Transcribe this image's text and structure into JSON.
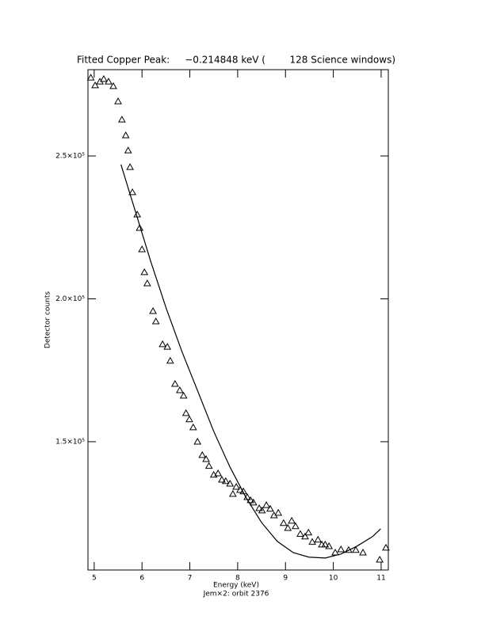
{
  "chart_data": {
    "type": "scatter",
    "title": "Fitted Copper Peak:     −0.214848 keV (        128 Science windows)",
    "x_label": "Energy (keV)",
    "subtitle": "Jem×2: orbit 2376",
    "y_label": "Detector counts",
    "xlim": [
      4.87,
      11.15
    ],
    "ylim": [
      105100,
      280200
    ],
    "xticks": [
      5,
      6,
      7,
      8,
      9,
      10,
      11
    ],
    "yticks": [
      {
        "value": 150000,
        "label": "1.5×10⁵"
      },
      {
        "value": 200000,
        "label": "2.0×10⁵"
      },
      {
        "value": 250000,
        "label": "2.5×10⁵"
      }
    ],
    "series": [
      {
        "style": "triangle",
        "color": "#000000",
        "x": [
          4.93,
          5.02,
          5.12,
          5.2,
          5.3,
          5.4,
          5.5,
          5.58,
          5.66,
          5.71,
          5.75,
          5.8,
          5.9,
          5.95,
          6.0,
          6.05,
          6.11,
          6.23,
          6.29,
          6.43,
          6.53,
          6.59,
          6.69,
          6.79,
          6.87,
          6.92,
          6.99,
          7.07,
          7.16,
          7.26,
          7.34,
          7.4,
          7.5,
          7.59,
          7.67,
          7.75,
          7.84,
          7.9,
          7.97,
          8.05,
          8.12,
          8.2,
          8.27,
          8.33,
          8.45,
          8.51,
          8.6,
          8.68,
          8.76,
          8.85,
          8.96,
          9.05,
          9.13,
          9.21,
          9.31,
          9.41,
          9.48,
          9.56,
          9.68,
          9.76,
          9.83,
          9.91,
          10.04,
          10.16,
          10.32,
          10.47,
          10.62,
          10.97,
          11.1
        ],
        "values": [
          277400,
          274700,
          276000,
          276900,
          276000,
          274400,
          269100,
          262700,
          257200,
          251900,
          246100,
          237300,
          229500,
          224800,
          217300,
          209300,
          205400,
          195700,
          192100,
          184100,
          183200,
          178300,
          170200,
          168000,
          166100,
          160000,
          157800,
          155000,
          150000,
          145300,
          143900,
          141500,
          138400,
          138900,
          136700,
          136200,
          135300,
          131700,
          134200,
          133100,
          132600,
          130600,
          129500,
          128700,
          126700,
          125900,
          127800,
          126500,
          124200,
          125100,
          121500,
          119800,
          122300,
          120400,
          117700,
          116800,
          118200,
          114900,
          115700,
          114000,
          114000,
          113400,
          111200,
          112300,
          112100,
          112100,
          111200,
          108700,
          112900
        ]
      },
      {
        "style": "line",
        "color": "#000000",
        "x": [
          5.56,
          5.85,
          6.18,
          6.51,
          6.84,
          7.17,
          7.5,
          7.84,
          8.17,
          8.5,
          8.83,
          9.16,
          9.49,
          9.83,
          10.16,
          10.49,
          10.82,
          10.99
        ],
        "values": [
          247000,
          231200,
          213200,
          196500,
          181300,
          167500,
          153600,
          141100,
          130600,
          121700,
          115100,
          111200,
          109600,
          109300,
          110700,
          113400,
          116800,
          119500
        ]
      }
    ]
  }
}
